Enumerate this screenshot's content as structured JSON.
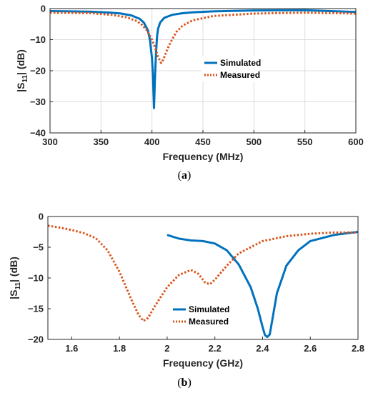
{
  "chart_data": [
    {
      "type": "line",
      "panel_label": "a",
      "xlabel": "Frequency (MHz)",
      "ylabel_main": "|S",
      "ylabel_sub": "11",
      "ylabel_end": "| (dB)",
      "xlim": [
        300,
        600
      ],
      "ylim": [
        -40,
        0
      ],
      "xticks": [
        300,
        350,
        400,
        450,
        500,
        550,
        600
      ],
      "yticks": [
        0,
        -10,
        -20,
        -30,
        -40
      ],
      "grid": true,
      "legend_position": "center-right",
      "series": [
        {
          "name": "Simulated",
          "color": "#0072BD",
          "style": "solid",
          "x": [
            300,
            320,
            340,
            360,
            370,
            380,
            388,
            392,
            396,
            398,
            400,
            401,
            402,
            403,
            404,
            405,
            406,
            408,
            412,
            420,
            430,
            440,
            460,
            500,
            550,
            600
          ],
          "y": [
            -0.8,
            -0.9,
            -1.0,
            -1.3,
            -1.6,
            -2.2,
            -3.3,
            -4.5,
            -7.0,
            -10.0,
            -16.0,
            -22.0,
            -32.0,
            -22.0,
            -14.0,
            -9.0,
            -6.5,
            -4.5,
            -3.0,
            -2.0,
            -1.5,
            -1.2,
            -0.9,
            -0.6,
            -0.5,
            -1.1
          ]
        },
        {
          "name": "Measured",
          "color": "#D95319",
          "style": "dotted",
          "x": [
            300,
            340,
            360,
            375,
            385,
            390,
            395,
            400,
            403,
            406,
            409,
            411,
            414,
            418,
            424,
            430,
            440,
            460,
            500,
            550,
            600
          ],
          "y": [
            -1.3,
            -1.5,
            -2.0,
            -2.8,
            -4.0,
            -5.2,
            -7.0,
            -10.0,
            -12.5,
            -15.5,
            -17.5,
            -16.5,
            -14.0,
            -11.0,
            -7.5,
            -5.5,
            -3.8,
            -2.4,
            -1.6,
            -1.3,
            -1.6
          ]
        }
      ]
    },
    {
      "type": "line",
      "panel_label": "b",
      "xlabel": "Frequency (GHz)",
      "ylabel_main": "|S",
      "ylabel_sub": "11",
      "ylabel_end": "| (dB)",
      "xlim": [
        1.5,
        2.8
      ],
      "ylim": [
        -20,
        0
      ],
      "xticks": [
        1.6,
        1.8,
        2,
        2.2,
        2.4,
        2.6,
        2.8
      ],
      "yticks": [
        0,
        -5,
        -10,
        -15,
        -20
      ],
      "grid": false,
      "legend_position": "bottom-center",
      "series": [
        {
          "name": "Simulated",
          "color": "#0072BD",
          "style": "solid",
          "x": [
            2.0,
            2.05,
            2.1,
            2.15,
            2.2,
            2.25,
            2.3,
            2.35,
            2.38,
            2.4,
            2.41,
            2.42,
            2.43,
            2.44,
            2.46,
            2.5,
            2.55,
            2.6,
            2.7,
            2.8
          ],
          "y": [
            -3.0,
            -3.6,
            -3.9,
            -4.0,
            -4.4,
            -5.5,
            -7.8,
            -11.5,
            -15.0,
            -18.0,
            -19.3,
            -19.6,
            -19.2,
            -17.0,
            -12.5,
            -8.0,
            -5.5,
            -4.0,
            -3.0,
            -2.5
          ]
        },
        {
          "name": "Measured",
          "color": "#D95319",
          "style": "dotted",
          "x": [
            1.5,
            1.55,
            1.6,
            1.65,
            1.7,
            1.75,
            1.8,
            1.85,
            1.88,
            1.9,
            1.92,
            1.95,
            2.0,
            2.05,
            2.1,
            2.13,
            2.16,
            2.18,
            2.2,
            2.25,
            2.3,
            2.4,
            2.5,
            2.6,
            2.7,
            2.8
          ],
          "y": [
            -1.5,
            -1.8,
            -2.2,
            -2.7,
            -3.5,
            -5.5,
            -9.0,
            -13.5,
            -16.0,
            -17.0,
            -16.5,
            -14.5,
            -11.5,
            -9.5,
            -8.7,
            -9.3,
            -10.8,
            -11.0,
            -10.3,
            -8.0,
            -6.0,
            -4.0,
            -3.2,
            -2.8,
            -2.6,
            -2.6
          ]
        }
      ]
    }
  ]
}
